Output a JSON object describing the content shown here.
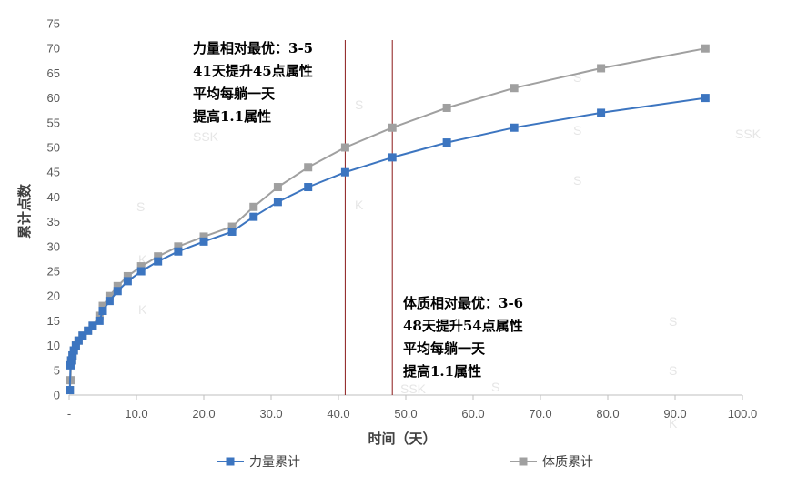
{
  "chart_data": {
    "type": "line",
    "xlabel": "时间（天）",
    "ylabel": "累计点数",
    "xlim": [
      0,
      100
    ],
    "ylim": [
      0,
      75
    ],
    "x_ticks": [
      "-",
      "10.0",
      "20.0",
      "30.0",
      "40.0",
      "50.0",
      "60.0",
      "70.0",
      "80.0",
      "90.0",
      "100.0"
    ],
    "y_ticks": [
      "0",
      "5",
      "10",
      "15",
      "20",
      "25",
      "30",
      "35",
      "40",
      "45",
      "50",
      "55",
      "60",
      "65",
      "70",
      "75"
    ],
    "grid": false,
    "legend_position": "bottom",
    "series": [
      {
        "name": "力量累计",
        "color": "#3c75c0",
        "x": [
          0.1,
          0.2,
          0.3,
          0.5,
          0.7,
          1.0,
          1.4,
          2.0,
          2.8,
          3.5,
          4.5,
          5.0,
          6.0,
          7.2,
          8.7,
          10.7,
          13.2,
          16.2,
          20.0,
          24.2,
          27.4,
          31.0,
          35.5,
          41.0,
          48.0,
          56.1,
          66.1,
          79.0,
          94.5
        ],
        "values": [
          1,
          6,
          7,
          8,
          9,
          10,
          11,
          12,
          13,
          14,
          15,
          17,
          19,
          21,
          23,
          25,
          27,
          29,
          31,
          33,
          36,
          39,
          42,
          45,
          48,
          51,
          54,
          57,
          60
        ]
      },
      {
        "name": "体质累计",
        "color": "#a0a0a0",
        "x": [
          0.1,
          0.2,
          0.3,
          0.5,
          0.7,
          1.0,
          1.4,
          2.0,
          2.8,
          3.5,
          4.5,
          5.0,
          6.0,
          7.2,
          8.7,
          10.7,
          13.2,
          16.2,
          20.0,
          24.2,
          27.4,
          31.0,
          35.5,
          41.0,
          48.0,
          56.1,
          66.1,
          79.0,
          94.5
        ],
        "values": [
          1,
          3,
          7,
          8,
          9,
          10,
          11,
          12,
          13,
          14,
          16,
          18,
          20,
          22,
          24,
          26,
          28,
          30,
          32,
          34,
          38,
          42,
          46,
          50,
          54,
          58,
          62,
          66,
          70
        ]
      }
    ],
    "vlines": [
      {
        "x": 41.0,
        "color": "#8b1a1a"
      },
      {
        "x": 48.0,
        "color": "#8b1a1a"
      }
    ],
    "annotations": [
      {
        "lines": [
          "力量相对最优：3-5",
          "41天提升45点属性",
          "平均每躺一天",
          "提高1.1属性"
        ]
      },
      {
        "lines": [
          "体质相对最优：3-6",
          "48天提升54点属性",
          "平均每躺一天",
          "提高1.1属性"
        ]
      }
    ],
    "watermarks": [
      "S",
      "SSK",
      "S",
      "K",
      "S",
      "S",
      "K",
      "SSK",
      "S",
      "K",
      "S",
      "S",
      "SSK",
      "K",
      "S"
    ]
  }
}
